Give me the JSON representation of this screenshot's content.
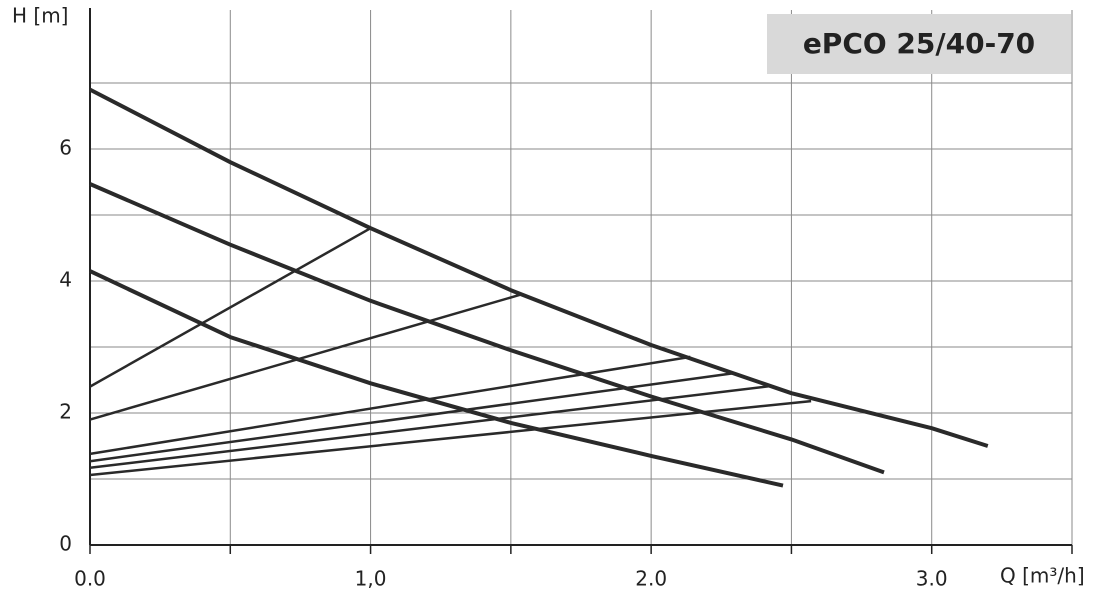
{
  "chart_data": {
    "type": "line",
    "title": "ePCO 25/40-70",
    "ylabel": "H [m]",
    "xlabel": "Q [m³/h]",
    "xlim": [
      0,
      3.5
    ],
    "ylim": [
      0,
      8
    ],
    "xticks": [
      {
        "value": 0,
        "label": "0.0"
      },
      {
        "value": 1,
        "label": "1,0"
      },
      {
        "value": 2,
        "label": "2.0"
      },
      {
        "value": 3,
        "label": "3.0"
      }
    ],
    "xminor": [
      0.5,
      1.5,
      2.5,
      3.5
    ],
    "yticks": [
      0,
      2,
      4,
      6
    ],
    "yminor": [
      1,
      3,
      5,
      7
    ],
    "grid": true,
    "series": [
      {
        "color": "#2a2a2a",
        "width": 4,
        "x": [
          0,
          0.5,
          1.0,
          1.5,
          2.0,
          2.5,
          3.0,
          3.2
        ],
        "values": [
          6.9,
          5.8,
          4.8,
          3.86,
          3.03,
          2.3,
          1.77,
          1.5
        ]
      },
      {
        "color": "#2a2a2a",
        "width": 4,
        "x": [
          0,
          0.5,
          1.0,
          1.5,
          2.0,
          2.5,
          2.83
        ],
        "values": [
          5.47,
          4.55,
          3.7,
          2.95,
          2.25,
          1.6,
          1.1
        ]
      },
      {
        "color": "#2a2a2a",
        "width": 4,
        "x": [
          0,
          0.5,
          1.0,
          1.5,
          2.0,
          2.47
        ],
        "values": [
          4.15,
          3.15,
          2.45,
          1.85,
          1.35,
          0.9
        ]
      },
      {
        "color": "#2a2a2a",
        "width": 2.5,
        "x": [
          0,
          1.0
        ],
        "values": [
          2.4,
          4.8
        ]
      },
      {
        "color": "#2a2a2a",
        "width": 2.5,
        "x": [
          0,
          1.54
        ],
        "values": [
          1.9,
          3.8
        ]
      },
      {
        "color": "#2a2a2a",
        "width": 2.5,
        "x": [
          0,
          2.14
        ],
        "values": [
          1.38,
          2.85
        ]
      },
      {
        "color": "#2a2a2a",
        "width": 2.5,
        "x": [
          0,
          2.29
        ],
        "values": [
          1.27,
          2.6
        ]
      },
      {
        "color": "#2a2a2a",
        "width": 2.5,
        "x": [
          0,
          2.43
        ],
        "values": [
          1.17,
          2.41
        ]
      },
      {
        "color": "#2a2a2a",
        "width": 2.5,
        "x": [
          0,
          2.57
        ],
        "values": [
          1.06,
          2.18
        ]
      }
    ]
  }
}
